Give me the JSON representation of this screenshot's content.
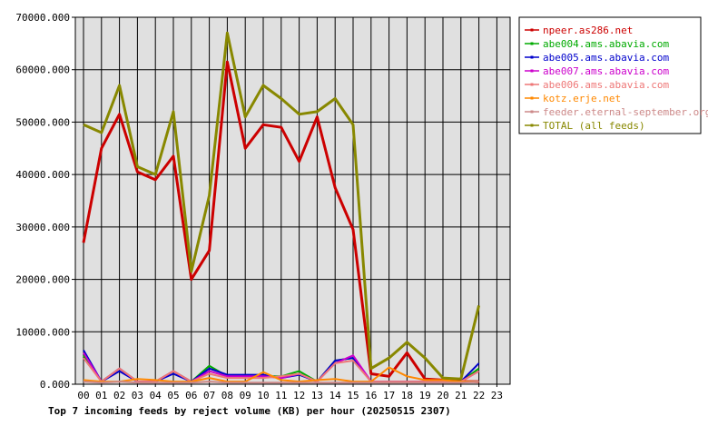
{
  "chart_data": {
    "type": "line",
    "title": "Top 7 incoming feeds by reject volume (KB) per hour (20250515 2307)",
    "x": [
      "00",
      "01",
      "02",
      "03",
      "04",
      "05",
      "06",
      "07",
      "08",
      "09",
      "10",
      "11",
      "12",
      "13",
      "14",
      "15",
      "16",
      "17",
      "18",
      "19",
      "20",
      "21",
      "22",
      "23"
    ],
    "ylim": [
      0,
      70000
    ],
    "yticks": [
      "0.000",
      "10000.000",
      "20000.000",
      "30000.000",
      "40000.000",
      "50000.000",
      "60000.000",
      "70000.000"
    ],
    "grid": true,
    "legend_position": "right",
    "series": [
      {
        "name": "npeer.as286.net",
        "color": "#cc0000",
        "values": [
          27000,
          45000,
          51500,
          40500,
          39000,
          43500,
          20000,
          25500,
          61500,
          45000,
          49500,
          49000,
          42500,
          51000,
          37500,
          29500,
          2000,
          1500,
          6000,
          1000,
          800,
          500,
          500,
          null
        ]
      },
      {
        "name": "abe004.ams.abavia.com",
        "color": "#00aa00",
        "values": [
          5500,
          500,
          3000,
          500,
          500,
          2500,
          500,
          3500,
          1500,
          1500,
          1500,
          1500,
          2500,
          500,
          4500,
          5000,
          500,
          500,
          500,
          500,
          500,
          500,
          3000,
          null
        ]
      },
      {
        "name": "abe005.ams.abavia.com",
        "color": "#0000cc",
        "values": [
          6500,
          500,
          2500,
          500,
          500,
          2000,
          500,
          3000,
          1800,
          1800,
          1800,
          1200,
          1800,
          500,
          4500,
          5000,
          500,
          500,
          500,
          500,
          500,
          500,
          4000,
          null
        ]
      },
      {
        "name": "abe007.ams.abavia.com",
        "color": "#cc00cc",
        "values": [
          6000,
          500,
          3000,
          500,
          500,
          2500,
          500,
          2500,
          1500,
          1500,
          1500,
          1200,
          2000,
          500,
          4000,
          5500,
          500,
          500,
          500,
          500,
          500,
          500,
          2500,
          null
        ]
      },
      {
        "name": "abe006.ams.abavia.com",
        "color": "#ee7777",
        "values": [
          5000,
          500,
          3000,
          500,
          500,
          2500,
          500,
          2000,
          1200,
          1200,
          1200,
          1500,
          2000,
          500,
          4000,
          4500,
          500,
          500,
          500,
          500,
          500,
          500,
          2500,
          null
        ]
      },
      {
        "name": "kotz.erje.net",
        "color": "#ff8800",
        "values": [
          800,
          500,
          500,
          1000,
          800,
          500,
          500,
          1200,
          500,
          500,
          2300,
          800,
          500,
          800,
          1000,
          500,
          500,
          3200,
          1500,
          800,
          800,
          500,
          500,
          null
        ]
      },
      {
        "name": "feeder.eternal-september.org",
        "color": "#cc8888",
        "values": [
          500,
          300,
          500,
          300,
          300,
          300,
          300,
          500,
          300,
          300,
          300,
          300,
          300,
          300,
          300,
          300,
          300,
          300,
          300,
          300,
          300,
          300,
          500,
          null
        ]
      },
      {
        "name": "TOTAL (all feeds)",
        "color": "#888800",
        "values": [
          49500,
          48000,
          57000,
          41500,
          40000,
          52000,
          21500,
          36000,
          67000,
          51000,
          57000,
          54500,
          51500,
          52000,
          54500,
          49500,
          3000,
          5000,
          8000,
          5000,
          1200,
          1000,
          15000,
          null
        ]
      }
    ]
  }
}
